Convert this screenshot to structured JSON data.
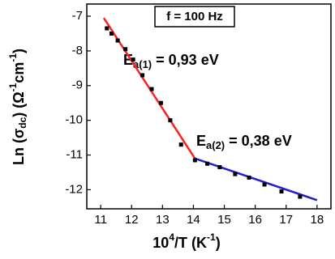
{
  "chart_data": {
    "type": "scatter",
    "x_label_parts": [
      "10",
      "4",
      "/T (K",
      "-1",
      ")"
    ],
    "y_label_parts": [
      "Ln (σ",
      "dc",
      ") (Ω",
      "-1",
      "cm",
      "-1",
      ")"
    ],
    "annotation": "f = 100 Hz",
    "fit_labels": [
      {
        "parts": [
          "E",
          "a(1)",
          " = 0,93 eV"
        ],
        "color": "#ff2020"
      },
      {
        "parts": [
          "E",
          "a(2)",
          " = 0,38 eV"
        ],
        "color": "#2020d0"
      }
    ],
    "xlim": [
      10.55,
      18.45
    ],
    "ylim": [
      -12.55,
      -6.65
    ],
    "xticks": [
      11,
      12,
      13,
      14,
      15,
      16,
      17,
      18
    ],
    "yticks": [
      -12,
      -11,
      -10,
      -9,
      -8,
      -7
    ],
    "series": [
      {
        "color": "#000000",
        "x": [
          11.2,
          11.35,
          11.55,
          11.8,
          12.05,
          12.35,
          12.65,
          12.95,
          13.25,
          13.6,
          14.05,
          14.45,
          14.85,
          15.35,
          15.8,
          16.3,
          16.85,
          17.45
        ],
        "values": [
          -7.35,
          -7.5,
          -7.7,
          -7.95,
          -8.25,
          -8.7,
          -9.1,
          -9.5,
          -10.0,
          -10.7,
          -11.15,
          -11.25,
          -11.35,
          -11.55,
          -11.65,
          -11.85,
          -12.05,
          -12.2
        ]
      }
    ],
    "fits": [
      {
        "color": "#ff2020",
        "x": [
          11.1,
          14.05
        ],
        "values": [
          -7.05,
          -11.1
        ]
      },
      {
        "color": "#2020d0",
        "x": [
          14.05,
          18.0
        ],
        "values": [
          -11.1,
          -12.3
        ]
      }
    ]
  }
}
